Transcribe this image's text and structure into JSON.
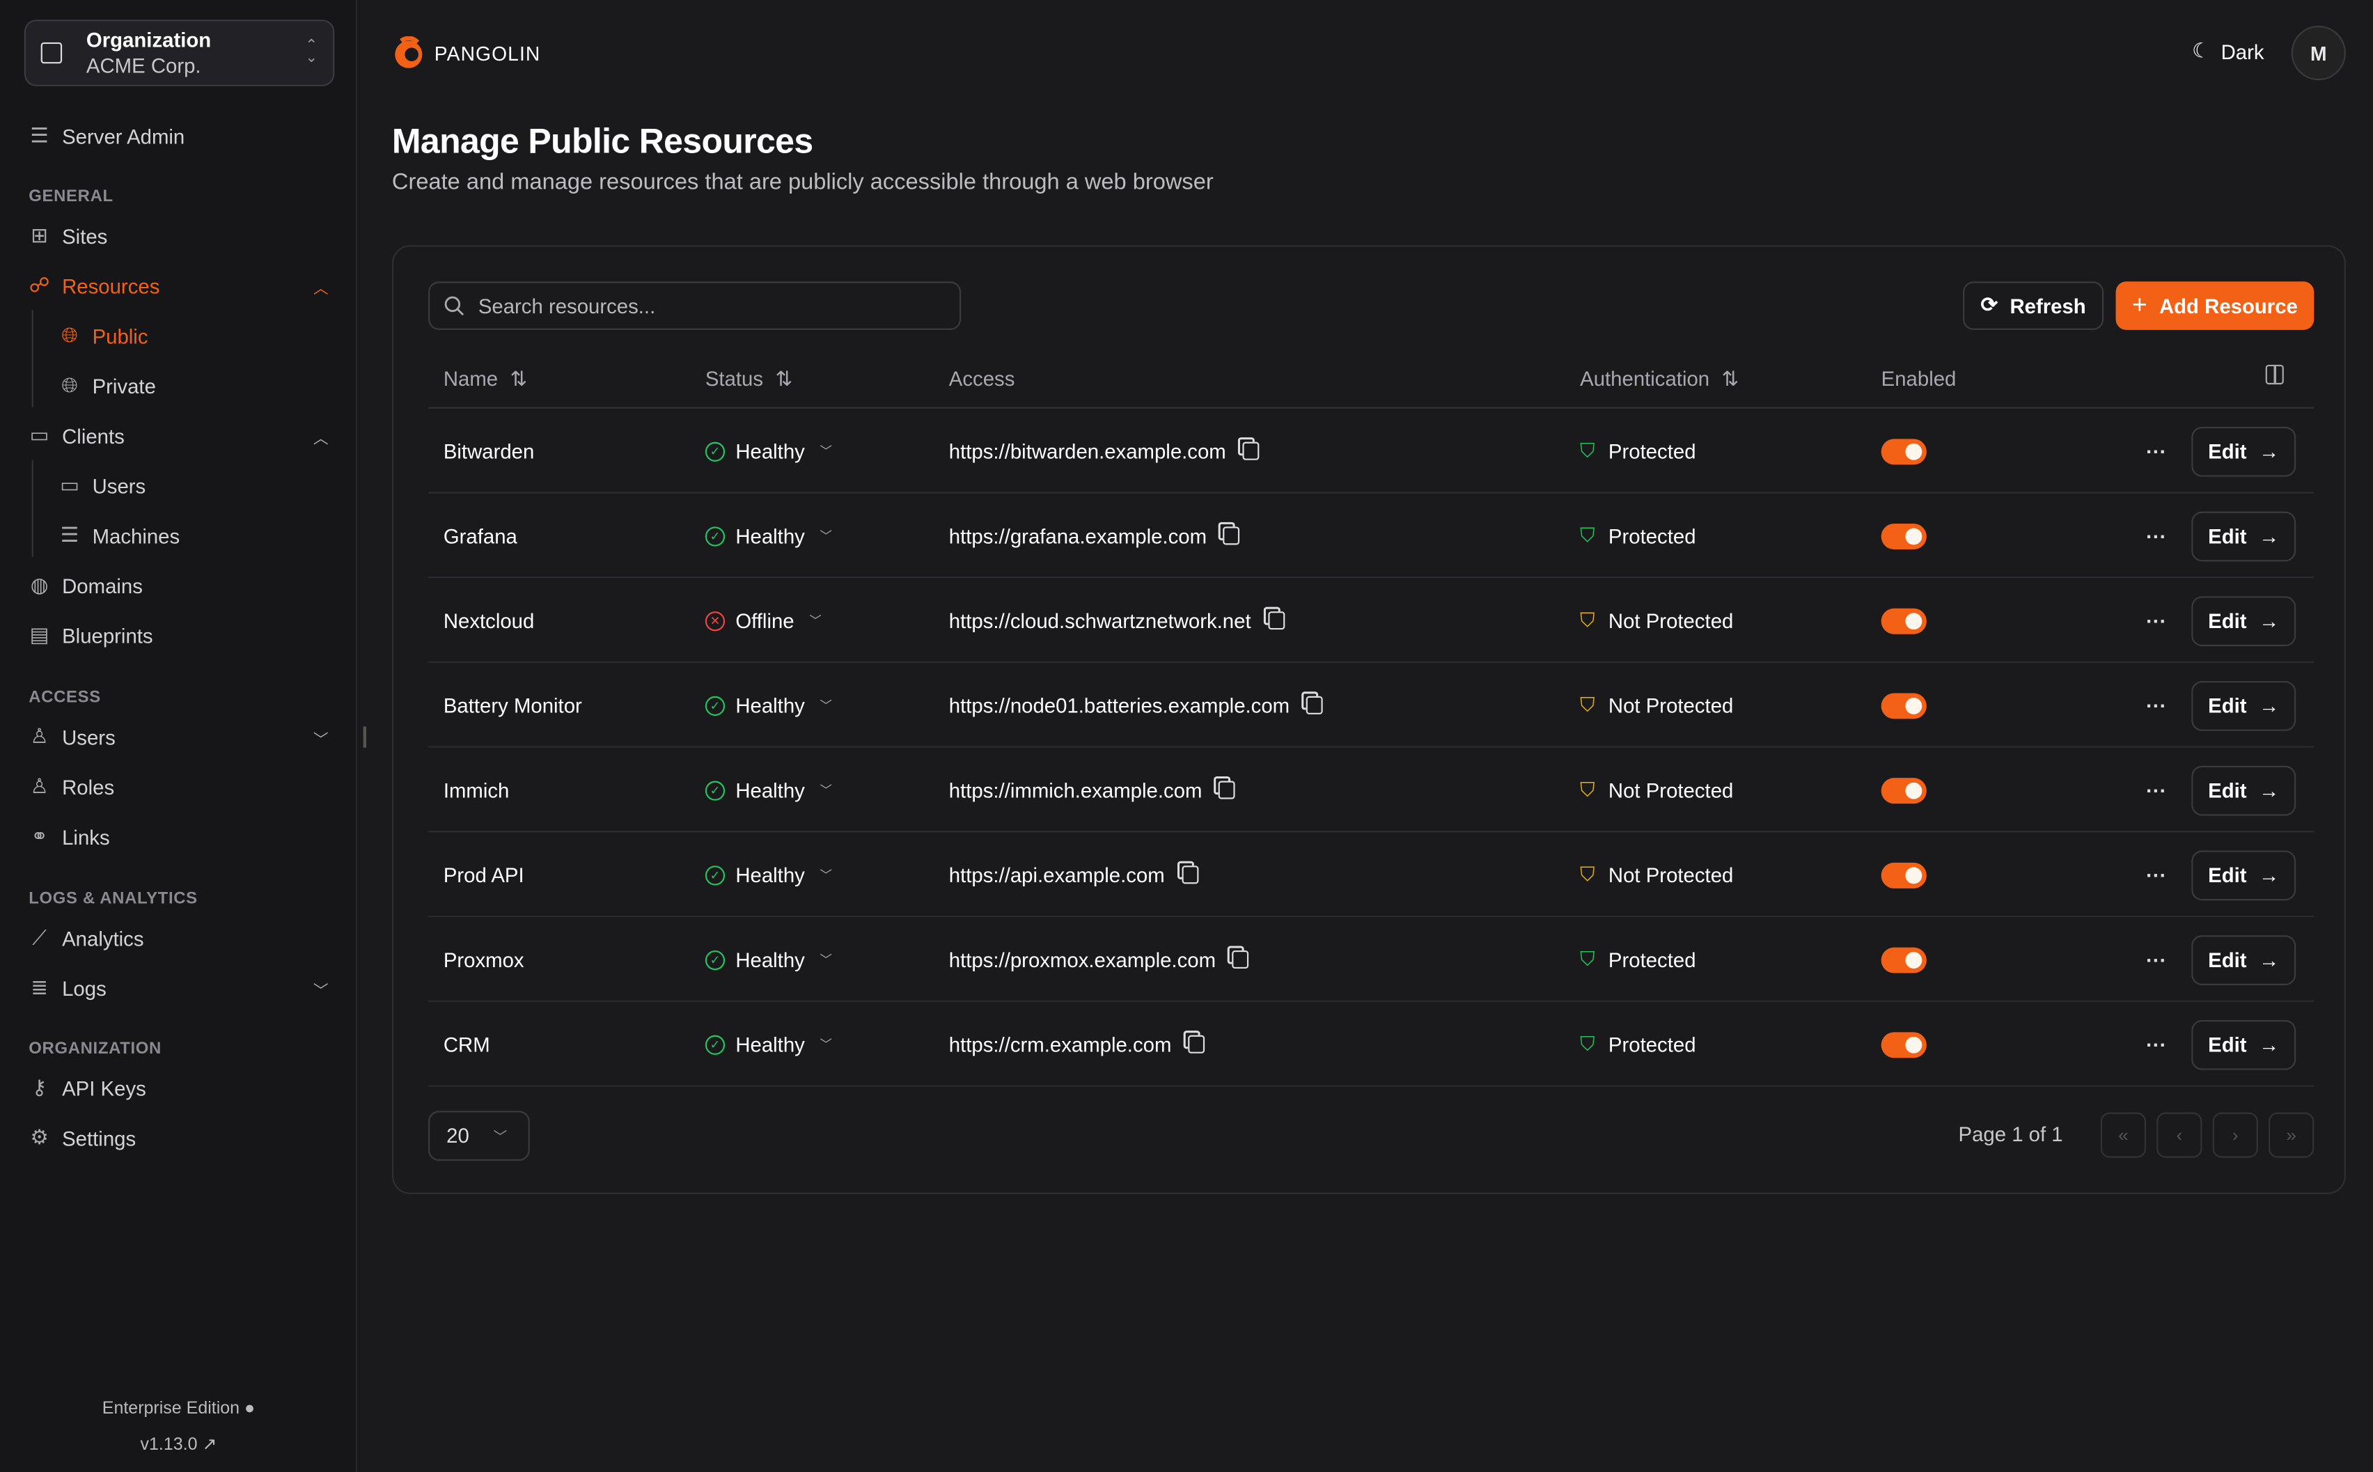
{
  "sidebar": {
    "org_label": "Organization",
    "org_name": "ACME Corp.",
    "server_admin": "Server Admin",
    "sections": {
      "general": "GENERAL",
      "access": "ACCESS",
      "logs": "LOGS & ANALYTICS",
      "organization": "ORGANIZATION"
    },
    "items": {
      "sites": "Sites",
      "resources": "Resources",
      "public": "Public",
      "private": "Private",
      "clients": "Clients",
      "users_client": "Users",
      "machines": "Machines",
      "domains": "Domains",
      "blueprints": "Blueprints",
      "users": "Users",
      "roles": "Roles",
      "links": "Links",
      "analytics": "Analytics",
      "logs": "Logs",
      "api_keys": "API Keys",
      "settings": "Settings"
    },
    "edition": "Enterprise Edition",
    "version": "v1.13.0"
  },
  "header": {
    "brand": "PANGOLIN",
    "theme": "Dark",
    "avatar": "M"
  },
  "page": {
    "title": "Manage Public Resources",
    "subtitle": "Create and manage resources that are publicly accessible through a web browser"
  },
  "toolbar": {
    "search_placeholder": "Search resources...",
    "refresh": "Refresh",
    "add": "Add Resource"
  },
  "table": {
    "columns": [
      "Name",
      "Status",
      "Access",
      "Authentication",
      "Enabled"
    ],
    "rows": [
      {
        "name": "Bitwarden",
        "status": "Healthy",
        "access": "https://bitwarden.example.com",
        "auth": "Protected",
        "enabled": true,
        "edit": "Edit"
      },
      {
        "name": "Grafana",
        "status": "Healthy",
        "access": "https://grafana.example.com",
        "auth": "Protected",
        "enabled": true,
        "edit": "Edit"
      },
      {
        "name": "Nextcloud",
        "status": "Offline",
        "access": "https://cloud.schwartznetwork.net",
        "auth": "Not Protected",
        "enabled": true,
        "edit": "Edit"
      },
      {
        "name": "Battery Monitor",
        "status": "Healthy",
        "access": "https://node01.batteries.example.com",
        "auth": "Not Protected",
        "enabled": true,
        "edit": "Edit"
      },
      {
        "name": "Immich",
        "status": "Healthy",
        "access": "https://immich.example.com",
        "auth": "Not Protected",
        "enabled": true,
        "edit": "Edit"
      },
      {
        "name": "Prod API",
        "status": "Healthy",
        "access": "https://api.example.com",
        "auth": "Not Protected",
        "enabled": true,
        "edit": "Edit"
      },
      {
        "name": "Proxmox",
        "status": "Healthy",
        "access": "https://proxmox.example.com",
        "auth": "Protected",
        "enabled": true,
        "edit": "Edit"
      },
      {
        "name": "CRM",
        "status": "Healthy",
        "access": "https://crm.example.com",
        "auth": "Protected",
        "enabled": true,
        "edit": "Edit"
      }
    ]
  },
  "pagination": {
    "page_size": "20",
    "page_info": "Page 1 of 1"
  },
  "colors": {
    "accent": "#f36117",
    "healthy": "#22c55e",
    "offline": "#ef4444",
    "warning": "#eab308"
  }
}
